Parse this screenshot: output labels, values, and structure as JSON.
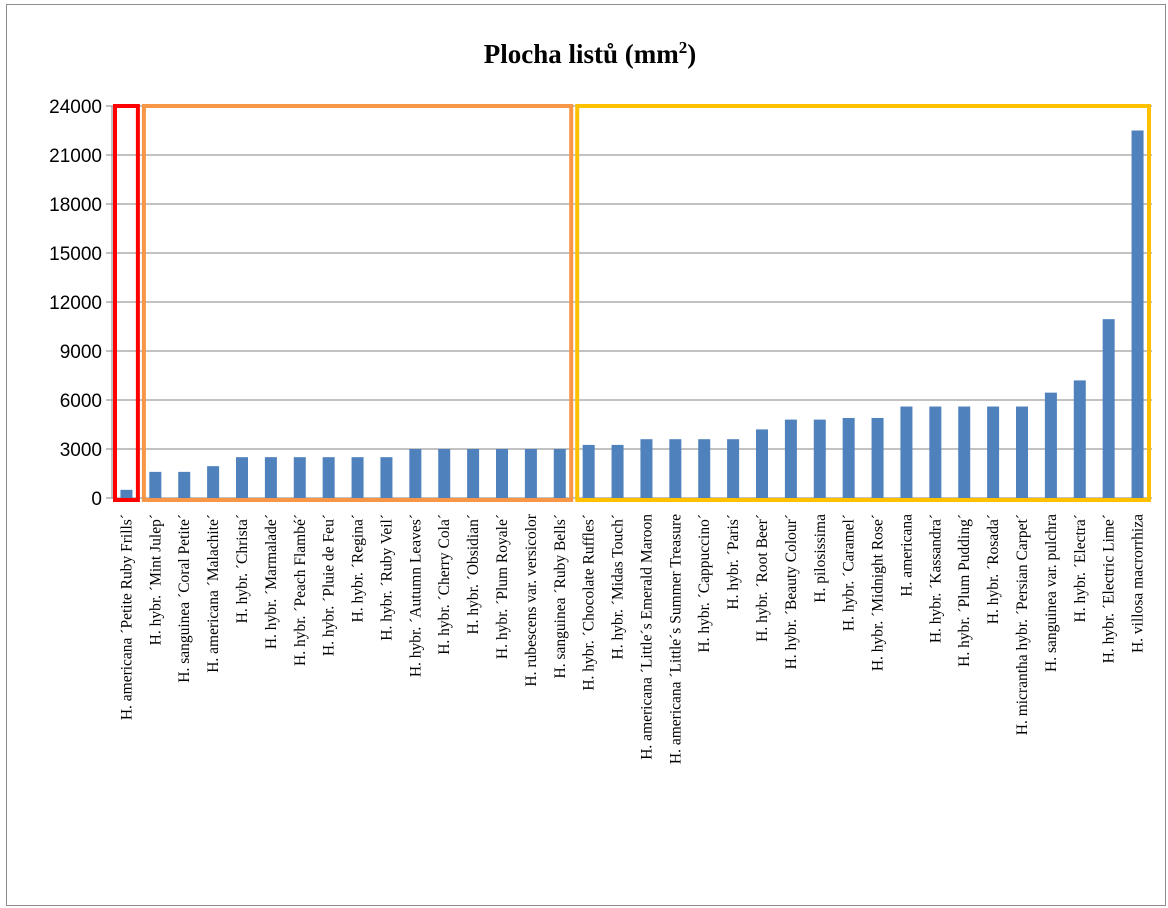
{
  "chart_data": {
    "type": "bar",
    "title": "Plocha listů (mm",
    "title_superscript": "2",
    "title_suffix": ")",
    "xlabel": "",
    "ylabel": "",
    "ylim": [
      0,
      24000
    ],
    "yticks": [
      "0",
      "3000",
      "6000",
      "9000",
      "12000",
      "15000",
      "18000",
      "21000",
      "24000"
    ],
    "grid": true,
    "legend": "none",
    "bar_color": "#4f81bd",
    "categories": [
      "H. americana ´Petite Ruby Frills´",
      "H. hybr. ´Mint Julep´",
      "H. sanguinea ´Coral Petite´",
      "H. americana ´Malachite´",
      "H. hybr. ´Christa´",
      "H. hybr. ´Marmalade´",
      "H. hybr. ´Peach Flambé´",
      "H. hybr. ´Pluie de Feu´",
      "H. hybr. ´Regina´",
      "H. hybr. ´Ruby Veil´",
      "H. hybr. ´Autumn Leaves´",
      "H. hybr. ´Cherry Cola´",
      "H. hybr. ´Obsidian´",
      "H. hybr. ´Plum Royale´",
      "H. rubescens var. versicolor",
      "H. sanguinea ´Ruby Bells´",
      "H. hybr. ´Chocolate Ruffles´",
      "H. hybr. ´Midas Touch´",
      "H. americana ´Little´s Emerald Maroon",
      "H. americana ´Little´s Summer Treasure",
      "H. hybr. ´Cappuccino´",
      "H. hybr. ´Paris´",
      "H. hybr. ´Root Beer´",
      "H. hybr. ´Beauty Colour´",
      "H. pilosissima",
      "H. hybr. ´Caramel´",
      "H. hybr. ´Midnight Rose´",
      "H. americana",
      "H. hybr. ´Kassandra´",
      "H. hybr. ´Plum Pudding´",
      "H. hybr. ´Rosada´",
      "H. micrantha hybr. ´Persian Carpet´",
      "H. sanguinea var. pulchra",
      "H. hybr. ´Electra´",
      "H. hybr. ´Electric Lime´",
      "H. villosa macrorrhiza"
    ],
    "values": [
      500,
      1600,
      1600,
      1950,
      2500,
      2500,
      2500,
      2500,
      2500,
      2500,
      3000,
      3000,
      3000,
      3000,
      3000,
      3000,
      3250,
      3250,
      3600,
      3600,
      3600,
      3600,
      4200,
      4800,
      4800,
      4900,
      4900,
      5600,
      5600,
      5600,
      5600,
      5600,
      6450,
      7200,
      10950,
      22500
    ],
    "group_boxes": [
      {
        "from": 0,
        "to": 0,
        "color": "#ff0000"
      },
      {
        "from": 1,
        "to": 15,
        "color": "#f79646"
      },
      {
        "from": 16,
        "to": 35,
        "color": "#ffc000"
      }
    ]
  }
}
